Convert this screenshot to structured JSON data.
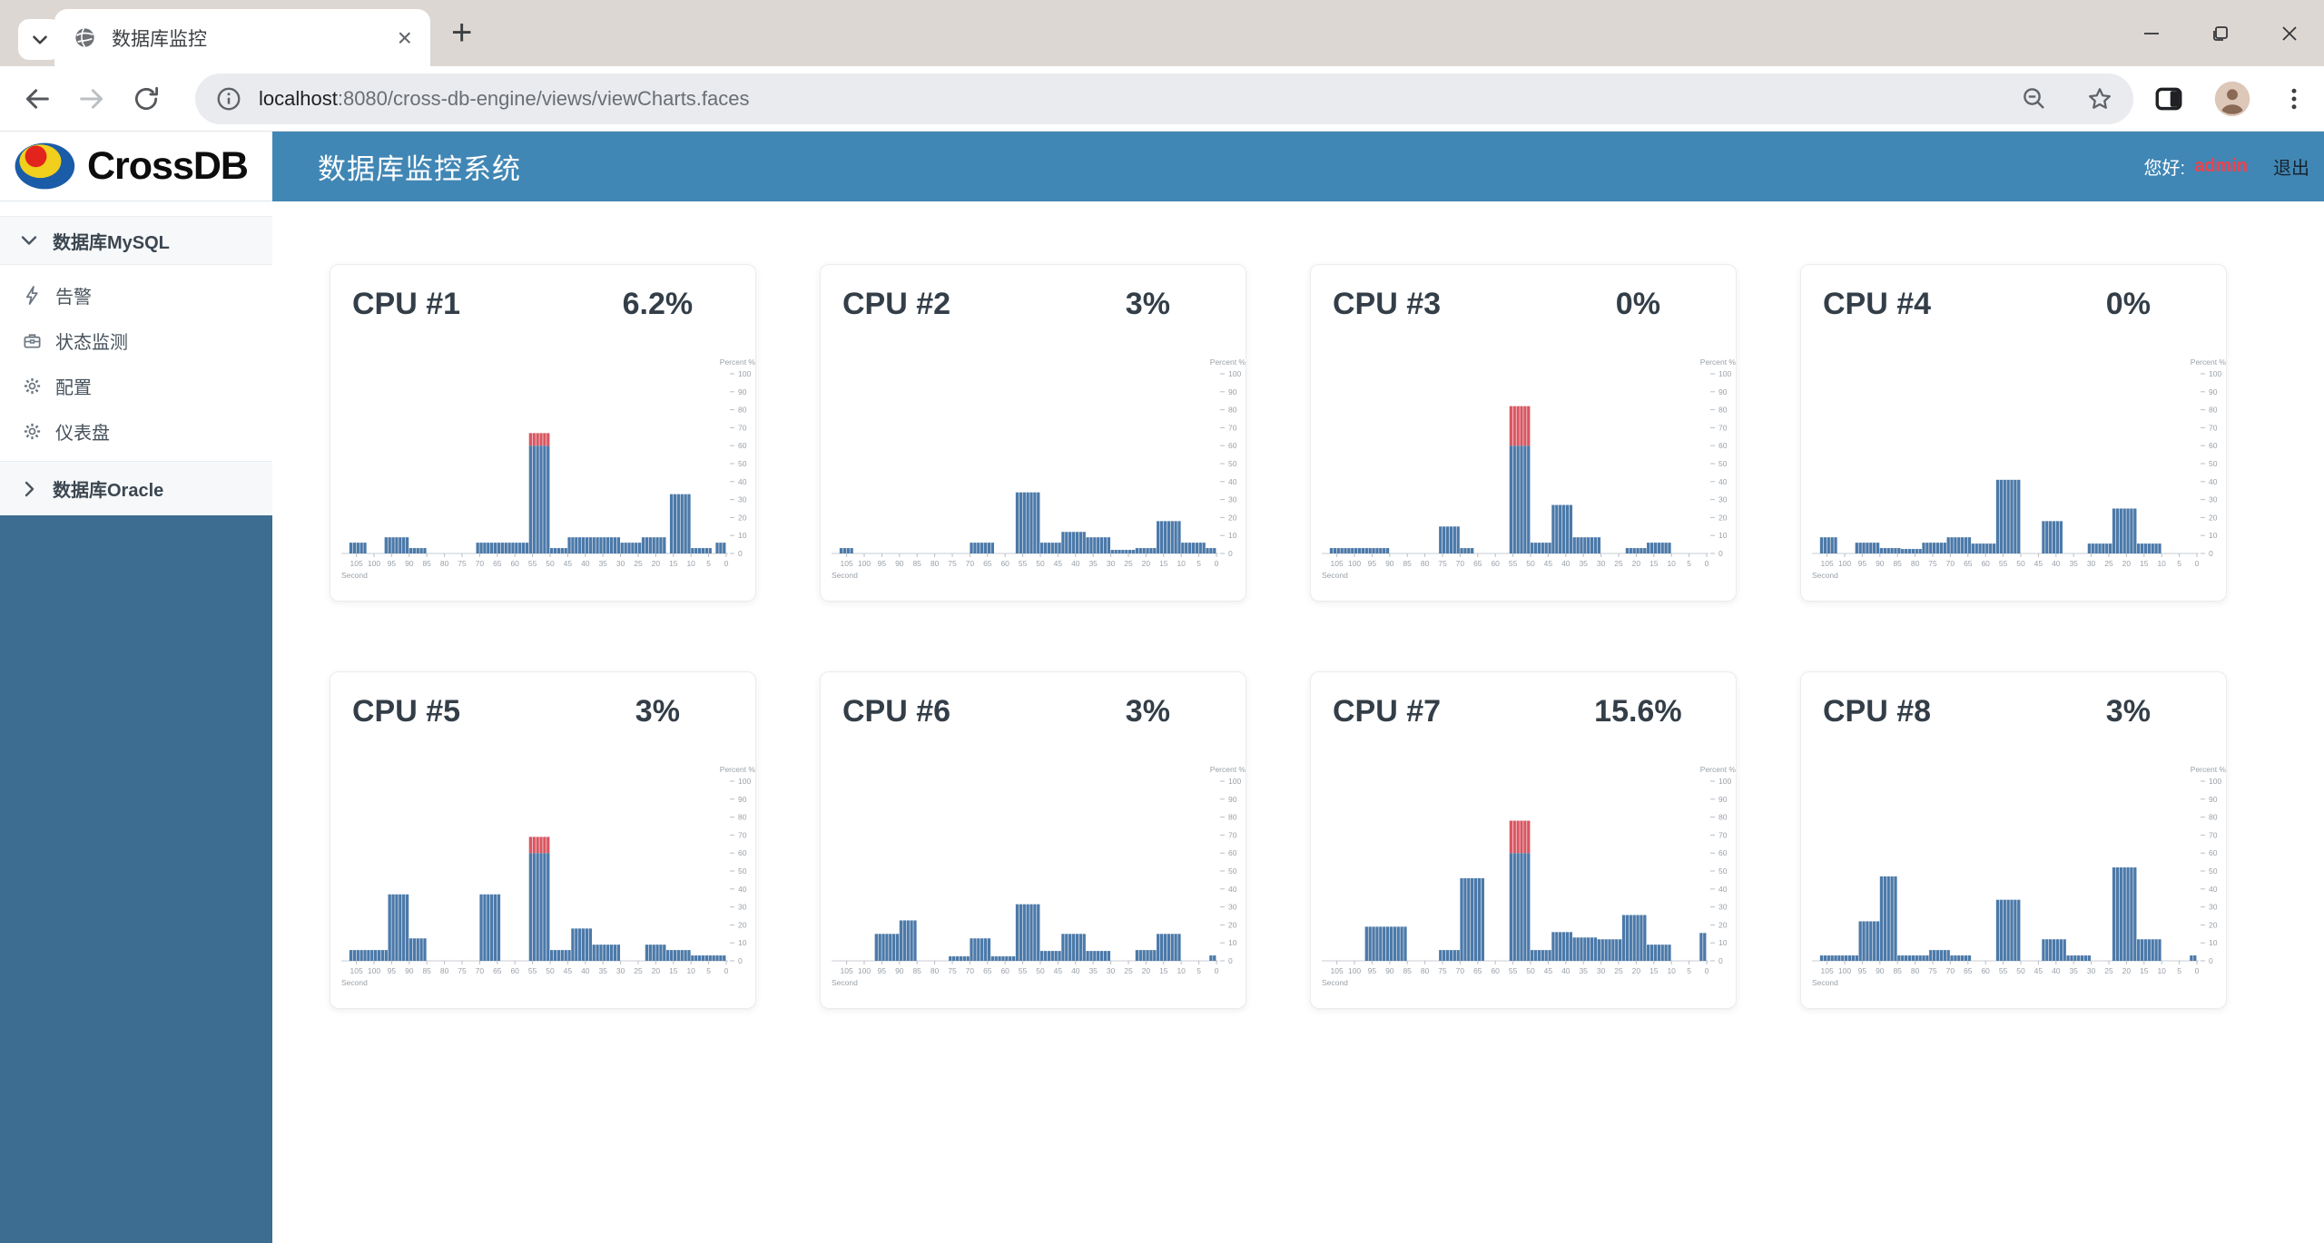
{
  "browser": {
    "tab_title": "数据库监控",
    "url": {
      "host": "localhost",
      "rest": ":8080/cross-db-engine/views/viewCharts.faces"
    },
    "glyphs": {
      "close_tab": "×",
      "new_tab": "+",
      "kebab": "⋮"
    }
  },
  "brand": {
    "name": "CrossDB"
  },
  "header": {
    "title": "数据库监控系统",
    "greeting": "您好:",
    "username": "admin",
    "logout": "退出"
  },
  "sidebar": {
    "groups": [
      {
        "label": "数据库MySQL",
        "expanded": true,
        "icon": "chevron-down-icon",
        "items": [
          {
            "label": "告警",
            "icon": "bolt-icon"
          },
          {
            "label": "状态监测",
            "icon": "briefcase-icon"
          },
          {
            "label": "配置",
            "icon": "gear-icon"
          },
          {
            "label": "仪表盘",
            "icon": "gear-icon"
          }
        ]
      },
      {
        "label": "数据库Oracle",
        "expanded": false,
        "icon": "chevron-right-icon",
        "items": []
      }
    ]
  },
  "colors": {
    "header_blue": "#4187b5",
    "sidebar_blue": "#3d6d90",
    "username_red": "#f1404b",
    "bar_blue": "#4b79a9",
    "bar_red": "#d95762"
  },
  "chart_config": {
    "type": "bar",
    "ylabel": "Percent %",
    "xlabel": "Second",
    "ylim": [
      0,
      100
    ],
    "y_tick_step": 10,
    "x_ticks": [
      105,
      100,
      95,
      90,
      85,
      80,
      75,
      70,
      65,
      60,
      55,
      50,
      45,
      40,
      35,
      30,
      25,
      20,
      15,
      10,
      5,
      0
    ],
    "threshold": 60,
    "bar_color": "#4b79a9",
    "over_color": "#d95762",
    "note": "segments are [from_second, to_second, percent]; seconds count down left(105)→right(0); red portion is usage above threshold"
  },
  "chart_data": [
    {
      "type": "bar",
      "title": "CPU #1",
      "value_label": "6.2%",
      "segments": [
        [
          107,
          102,
          6
        ],
        [
          97,
          90,
          9
        ],
        [
          90,
          85,
          3
        ],
        [
          71,
          56,
          6
        ],
        [
          56,
          50,
          67
        ],
        [
          50,
          45,
          3
        ],
        [
          45,
          30,
          9
        ],
        [
          30,
          24,
          6
        ],
        [
          24,
          17,
          9
        ],
        [
          16,
          10,
          33
        ],
        [
          10,
          4,
          3
        ],
        [
          3,
          0,
          6
        ]
      ]
    },
    {
      "type": "bar",
      "title": "CPU #2",
      "value_label": "3%",
      "segments": [
        [
          107,
          103,
          3
        ],
        [
          70,
          63,
          6
        ],
        [
          57,
          50,
          34
        ],
        [
          50,
          44,
          6
        ],
        [
          44,
          37,
          12
        ],
        [
          37,
          30,
          9
        ],
        [
          30,
          23,
          2
        ],
        [
          23,
          17,
          3
        ],
        [
          17,
          10,
          18
        ],
        [
          10,
          3,
          6
        ],
        [
          3,
          0,
          3
        ]
      ]
    },
    {
      "type": "bar",
      "title": "CPU #3",
      "value_label": "0%",
      "segments": [
        [
          107,
          90,
          3
        ],
        [
          76,
          70,
          15
        ],
        [
          70,
          66,
          3
        ],
        [
          56,
          50,
          82
        ],
        [
          50,
          44,
          6
        ],
        [
          44,
          38,
          27
        ],
        [
          38,
          30,
          9
        ],
        [
          23,
          17,
          3
        ],
        [
          17,
          10,
          6
        ]
      ]
    },
    {
      "type": "bar",
      "title": "CPU #4",
      "value_label": "0%",
      "segments": [
        [
          107,
          102,
          9
        ],
        [
          97,
          90,
          6
        ],
        [
          90,
          84,
          3
        ],
        [
          84,
          78,
          2.5
        ],
        [
          78,
          71,
          6
        ],
        [
          71,
          64,
          9
        ],
        [
          64,
          57,
          5.5
        ],
        [
          57,
          50,
          41
        ],
        [
          44,
          38,
          18
        ],
        [
          31,
          24,
          5.5
        ],
        [
          24,
          17,
          25
        ],
        [
          17,
          10,
          5.5
        ]
      ]
    },
    {
      "type": "bar",
      "title": "CPU #5",
      "value_label": "3%",
      "segments": [
        [
          107,
          96,
          6
        ],
        [
          96,
          90,
          37
        ],
        [
          90,
          85,
          12.5
        ],
        [
          70,
          64,
          37
        ],
        [
          56,
          50,
          69
        ],
        [
          50,
          44,
          6
        ],
        [
          44,
          38,
          18
        ],
        [
          38,
          30,
          9
        ],
        [
          23,
          17,
          9
        ],
        [
          17,
          10,
          6
        ],
        [
          10,
          0,
          3
        ]
      ]
    },
    {
      "type": "bar",
      "title": "CPU #6",
      "value_label": "3%",
      "segments": [
        [
          97,
          90,
          15
        ],
        [
          90,
          85,
          22.5
        ],
        [
          76,
          70,
          2.5
        ],
        [
          70,
          64,
          12.5
        ],
        [
          64,
          57,
          2.5
        ],
        [
          57,
          50,
          31.5
        ],
        [
          50,
          44,
          5.5
        ],
        [
          44,
          37,
          15
        ],
        [
          37,
          30,
          5.5
        ],
        [
          23,
          17,
          6
        ],
        [
          17,
          10,
          15
        ],
        [
          2,
          0,
          3
        ]
      ]
    },
    {
      "type": "bar",
      "title": "CPU #7",
      "value_label": "15.6%",
      "segments": [
        [
          97,
          85,
          19
        ],
        [
          76,
          70,
          6
        ],
        [
          70,
          63,
          46
        ],
        [
          56,
          50,
          78
        ],
        [
          50,
          44,
          6
        ],
        [
          44,
          38,
          16
        ],
        [
          38,
          31,
          13
        ],
        [
          31,
          24,
          12
        ],
        [
          24,
          17,
          25.5
        ],
        [
          17,
          10,
          9
        ],
        [
          2,
          0,
          15.5
        ]
      ]
    },
    {
      "type": "bar",
      "title": "CPU #8",
      "value_label": "3%",
      "segments": [
        [
          107,
          96,
          3
        ],
        [
          96,
          90,
          22
        ],
        [
          90,
          85,
          47
        ],
        [
          85,
          76,
          3
        ],
        [
          76,
          70,
          6
        ],
        [
          70,
          64,
          3
        ],
        [
          57,
          50,
          34
        ],
        [
          44,
          37,
          12
        ],
        [
          37,
          30,
          3
        ],
        [
          24,
          17,
          52
        ],
        [
          17,
          10,
          12
        ],
        [
          2,
          0,
          3
        ]
      ]
    }
  ]
}
